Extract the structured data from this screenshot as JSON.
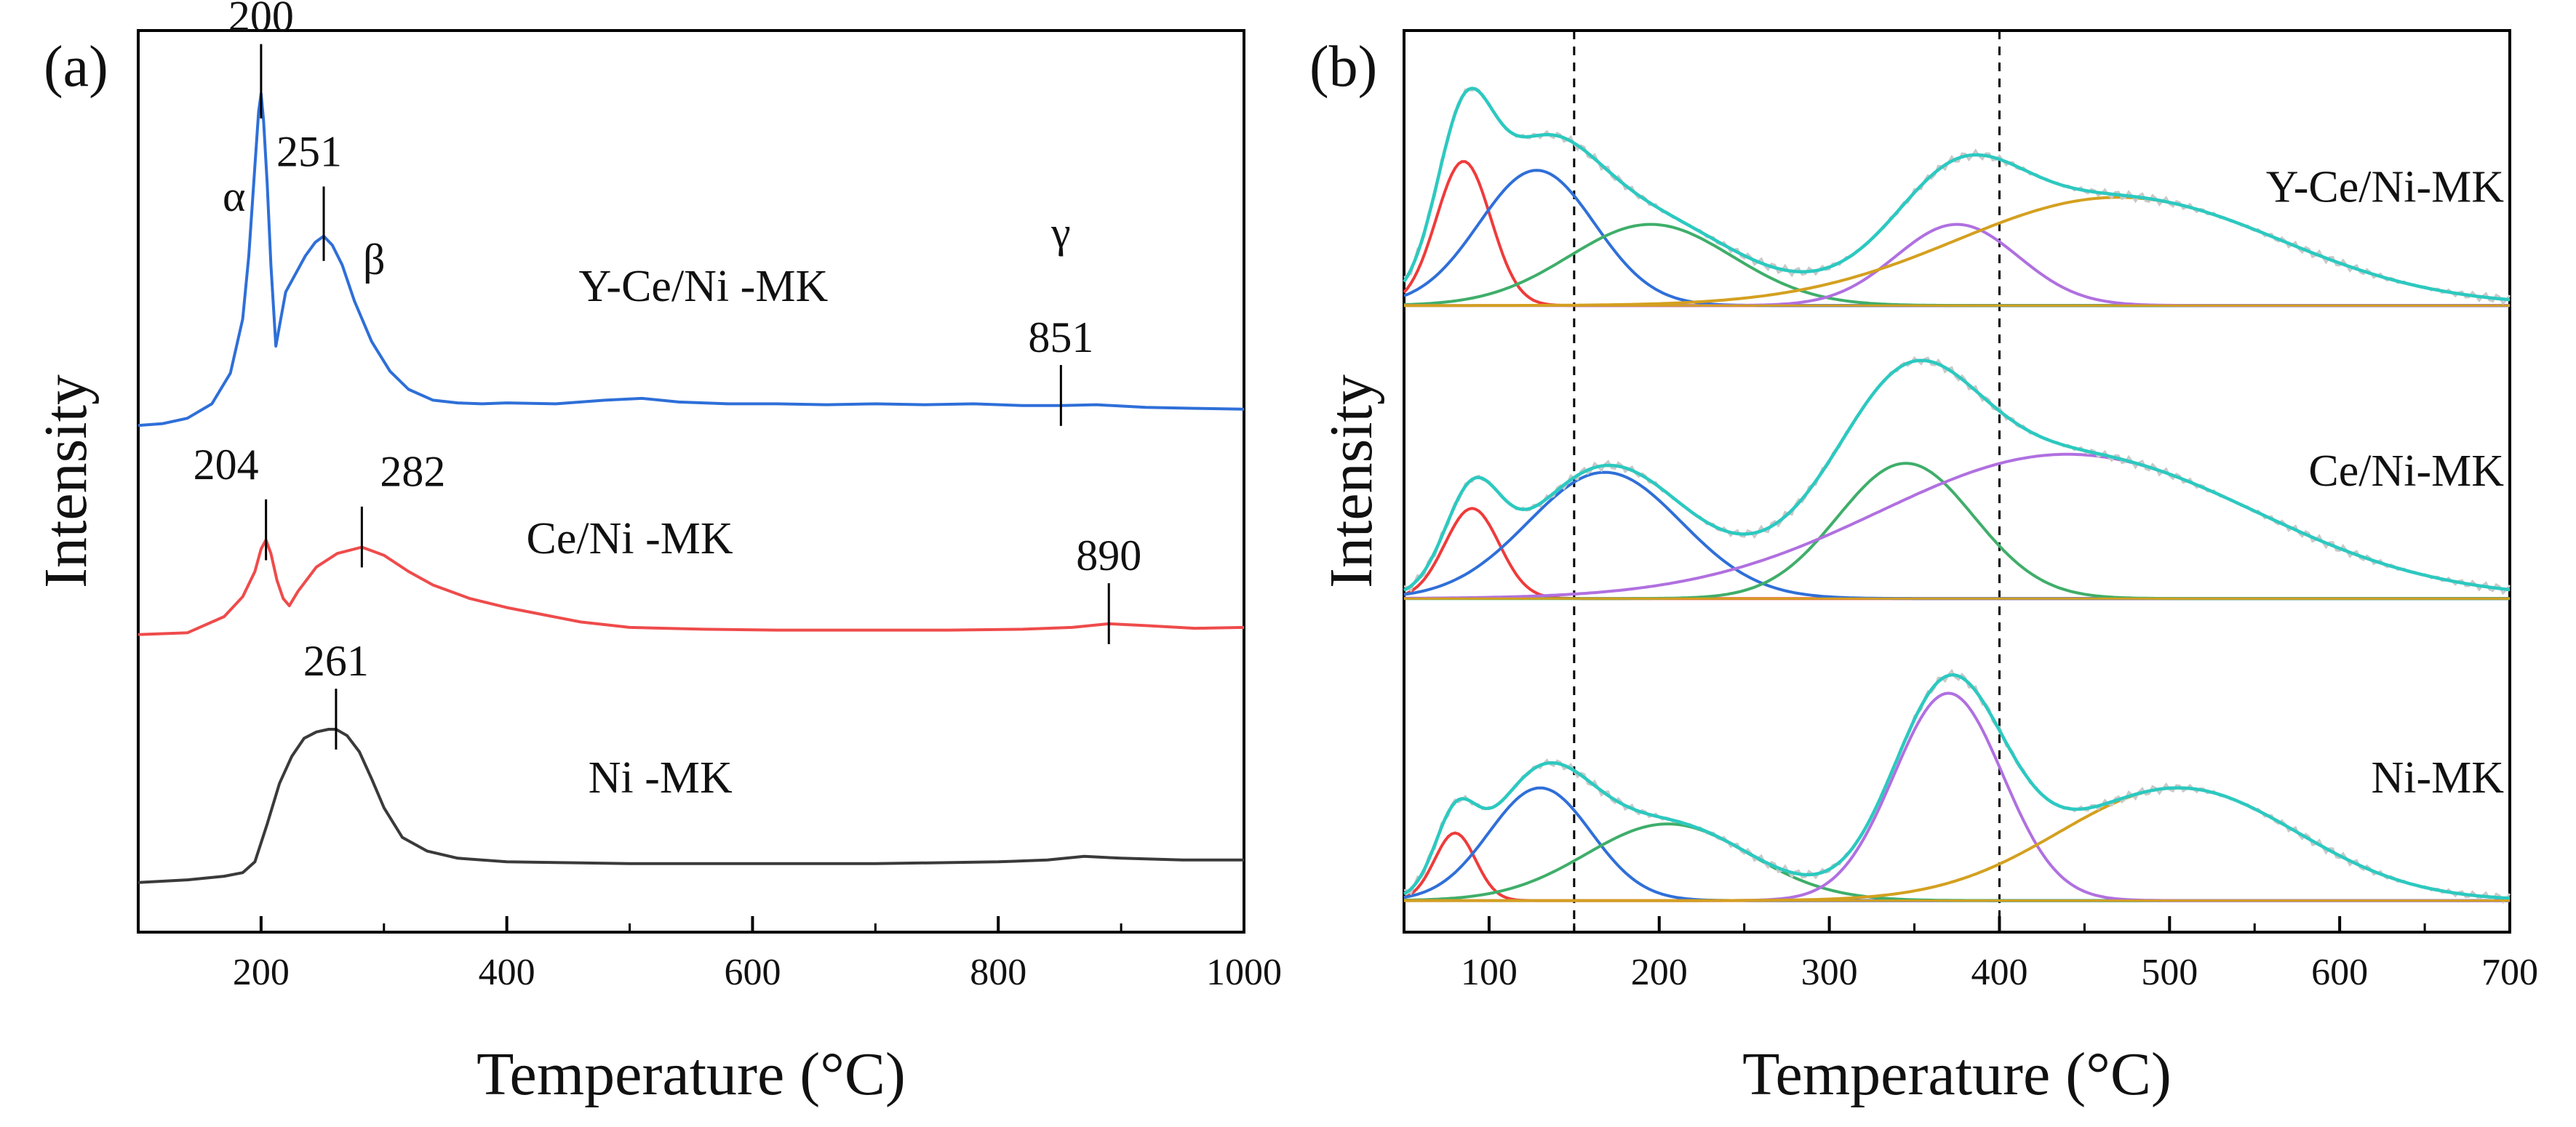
{
  "chart_data": [
    {
      "type": "line",
      "panel_label": "(a)",
      "title": "",
      "xlabel": "Temperature (°C)",
      "ylabel": "Intensity",
      "xlim": [
        100,
        1000
      ],
      "ylim": [
        0,
        10
      ],
      "xticks": [
        200,
        400,
        600,
        800,
        1000
      ],
      "xtick_labels": [
        "200",
        "400",
        "600",
        "800",
        "1000"
      ],
      "grid": false,
      "series": [
        {
          "name": "Y-Ce/Ni -MK",
          "label": "Y-Ce/Ni -MK",
          "color": "#2e6fd8",
          "x": [
            100,
            120,
            140,
            160,
            175,
            185,
            190,
            195,
            198,
            200,
            202,
            205,
            208,
            212,
            216,
            220,
            228,
            236,
            244,
            251,
            258,
            266,
            276,
            290,
            305,
            320,
            340,
            360,
            380,
            400,
            440,
            480,
            510,
            540,
            580,
            620,
            660,
            700,
            740,
            780,
            820,
            851,
            880,
            920,
            960,
            1000
          ],
          "y": [
            5.62,
            5.64,
            5.7,
            5.86,
            6.2,
            6.8,
            7.5,
            8.5,
            9.1,
            9.3,
            9.0,
            8.3,
            7.4,
            6.5,
            6.8,
            7.1,
            7.3,
            7.5,
            7.65,
            7.72,
            7.62,
            7.4,
            7.0,
            6.55,
            6.22,
            6.02,
            5.9,
            5.87,
            5.86,
            5.87,
            5.86,
            5.9,
            5.92,
            5.88,
            5.86,
            5.86,
            5.85,
            5.86,
            5.85,
            5.86,
            5.84,
            5.84,
            5.85,
            5.82,
            5.81,
            5.8
          ]
        },
        {
          "name": "Ce/Ni -MK",
          "label": "Ce/Ni -MK",
          "color": "#ef4b4b",
          "x": [
            100,
            140,
            170,
            185,
            195,
            200,
            204,
            208,
            213,
            218,
            223,
            230,
            245,
            262,
            282,
            300,
            320,
            340,
            370,
            400,
            430,
            460,
            500,
            560,
            620,
            700,
            760,
            820,
            860,
            890,
            920,
            960,
            1000
          ],
          "y": [
            3.3,
            3.32,
            3.5,
            3.72,
            4.0,
            4.25,
            4.35,
            4.2,
            3.9,
            3.7,
            3.62,
            3.78,
            4.05,
            4.2,
            4.27,
            4.18,
            4.0,
            3.85,
            3.7,
            3.6,
            3.52,
            3.44,
            3.38,
            3.36,
            3.35,
            3.35,
            3.35,
            3.36,
            3.38,
            3.42,
            3.4,
            3.37,
            3.38
          ]
        },
        {
          "name": "Ni -MK",
          "label": "Ni -MK",
          "color": "#3a3a3a",
          "x": [
            100,
            140,
            170,
            185,
            195,
            205,
            215,
            225,
            235,
            245,
            255,
            261,
            270,
            280,
            290,
            300,
            315,
            335,
            360,
            400,
            450,
            500,
            600,
            700,
            800,
            840,
            870,
            900,
            950,
            1000
          ],
          "y": [
            0.55,
            0.58,
            0.62,
            0.66,
            0.78,
            1.2,
            1.65,
            1.95,
            2.15,
            2.22,
            2.25,
            2.25,
            2.18,
            2.0,
            1.7,
            1.38,
            1.05,
            0.9,
            0.82,
            0.78,
            0.77,
            0.76,
            0.76,
            0.76,
            0.78,
            0.8,
            0.84,
            0.82,
            0.8,
            0.8
          ]
        }
      ],
      "peak_annotations": [
        {
          "text": "200",
          "x": 200,
          "series": 0,
          "tick": true
        },
        {
          "text": "251",
          "x": 251,
          "series": 0,
          "tick": true
        },
        {
          "text": "α",
          "x": 178,
          "series": 0,
          "tick": false
        },
        {
          "text": "β",
          "x": 292,
          "series": 0,
          "tick": false
        },
        {
          "text": "γ",
          "x": 851,
          "series": 0,
          "tick": false
        },
        {
          "text": "851",
          "x": 851,
          "series": 0,
          "tick": true
        },
        {
          "text": "204",
          "x": 204,
          "series": 1,
          "tick": true
        },
        {
          "text": "282",
          "x": 282,
          "series": 1,
          "tick": true
        },
        {
          "text": "890",
          "x": 890,
          "series": 1,
          "tick": true
        },
        {
          "text": "261",
          "x": 261,
          "series": 2,
          "tick": true
        }
      ]
    },
    {
      "type": "line",
      "panel_label": "(b)",
      "title": "",
      "xlabel": "Temperature (°C)",
      "ylabel": "Intensity",
      "xlim": [
        50,
        700
      ],
      "ylim": [
        0,
        10
      ],
      "xticks": [
        100,
        200,
        300,
        400,
        500,
        600,
        700
      ],
      "xtick_labels": [
        "100",
        "200",
        "300",
        "400",
        "500",
        "600",
        "700"
      ],
      "grid": false,
      "reference_lines_x": [
        150,
        400
      ],
      "fit_colors": {
        "envelope": "#2cc9c0",
        "experimental": "#c8c8c8",
        "peak1": "#ef3b3b",
        "peak2": "#2f6fd8",
        "peak3": "#3fae6a",
        "peak4": "#b070e0",
        "peak5": "#d4a020"
      },
      "groups": [
        {
          "label": "Y-Ce/Ni-MK",
          "baseline": 6.95,
          "peaks": [
            {
              "name": "peak1",
              "center": 85,
              "height": 1.6,
              "width": 16
            },
            {
              "name": "peak2",
              "center": 128,
              "height": 1.5,
              "width": 34
            },
            {
              "name": "peak3",
              "center": 195,
              "height": 0.9,
              "width": 48
            },
            {
              "name": "peak4",
              "center": 375,
              "height": 0.9,
              "width": 36
            },
            {
              "name": "peak5",
              "center": 470,
              "height": 1.2,
              "width": 95
            }
          ]
        },
        {
          "label": "Ce/Ni-MK",
          "baseline": 3.7,
          "peaks": [
            {
              "name": "peak1",
              "center": 90,
              "height": 1.0,
              "width": 16
            },
            {
              "name": "peak2",
              "center": 168,
              "height": 1.4,
              "width": 45
            },
            {
              "name": "peak3",
              "center": 345,
              "height": 1.5,
              "width": 40
            },
            {
              "name": "peak4",
              "center": 440,
              "height": 1.6,
              "width": 110
            },
            {
              "name": "peak5",
              "center": 350,
              "height": 0.0,
              "width": 40
            }
          ]
        },
        {
          "label": "Ni-MK",
          "baseline": 0.35,
          "peaks": [
            {
              "name": "peak1",
              "center": 80,
              "height": 0.75,
              "width": 12
            },
            {
              "name": "peak2",
              "center": 130,
              "height": 1.25,
              "width": 30
            },
            {
              "name": "peak3",
              "center": 205,
              "height": 0.85,
              "width": 48
            },
            {
              "name": "peak4",
              "center": 370,
              "height": 2.3,
              "width": 32
            },
            {
              "name": "peak5",
              "center": 505,
              "height": 1.25,
              "width": 70
            }
          ]
        }
      ]
    }
  ]
}
